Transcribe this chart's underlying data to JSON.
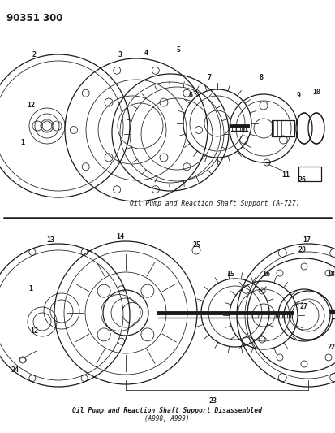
{
  "part_number": "90351 300",
  "bg_color": "#ffffff",
  "line_color": "#1a1a1a",
  "caption1": "Oil Pump and Reaction Shaft Support (A-727)",
  "caption2": "Oil Pump and Reaction Shaft Support Disassembled",
  "caption3": "(A998, A999)",
  "figsize": [
    4.13,
    5.33
  ],
  "dpi": 100
}
